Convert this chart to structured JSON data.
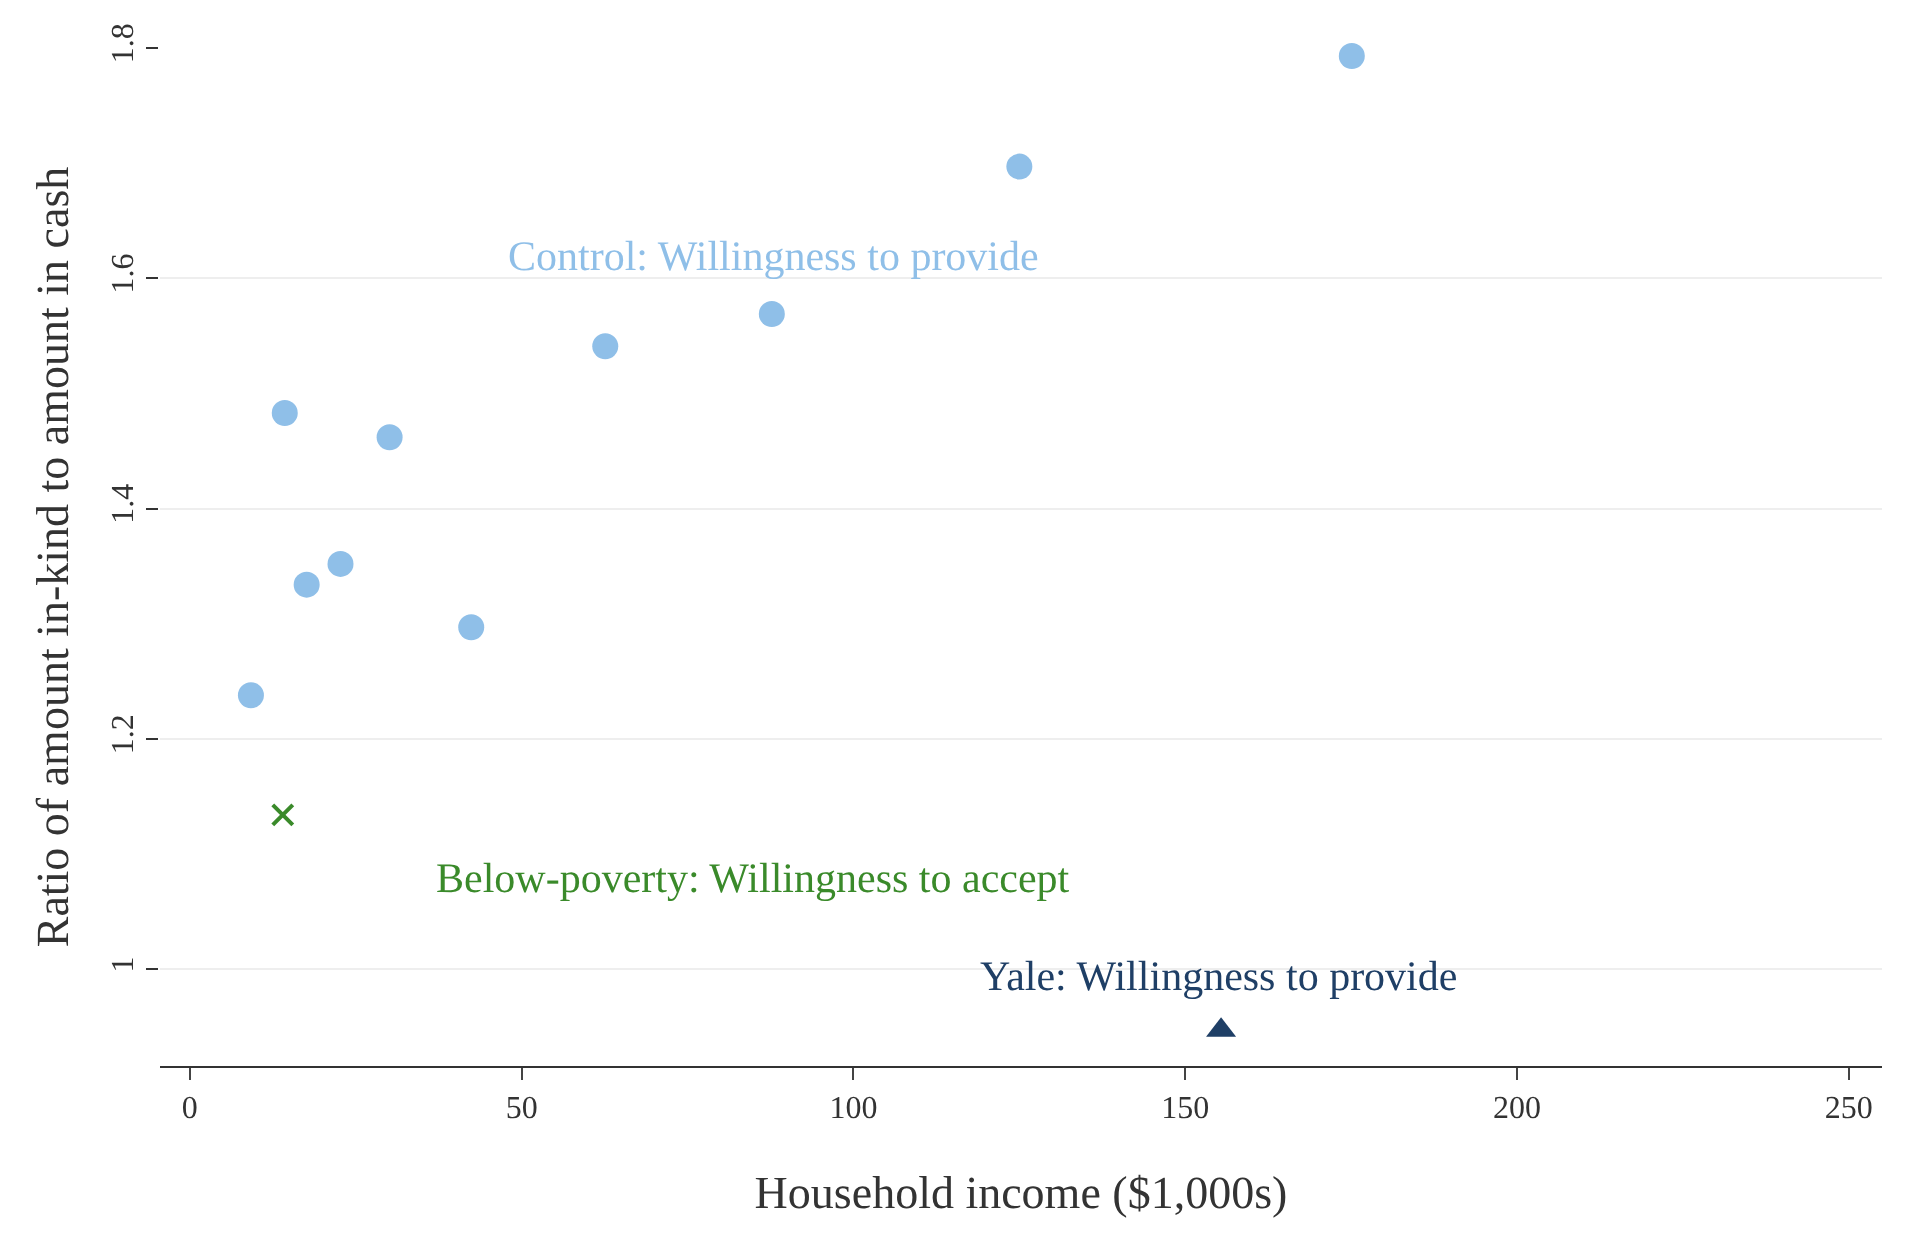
{
  "chart_data": {
    "type": "scatter",
    "xlabel": "Household income ($1,000s)",
    "ylabel": "Ratio of amount in-kind to amount in cash",
    "xlim": [
      -4.5,
      255
    ],
    "ylim": [
      0.916,
      1.8
    ],
    "xticks": [
      0,
      50,
      100,
      150,
      200,
      250
    ],
    "yticks": [
      {
        "value": 1,
        "label": "1"
      },
      1.2,
      1.4,
      1.6,
      1.8
    ],
    "grid": "y",
    "legend": false,
    "series": [
      {
        "name": "Control: Willingness to provide",
        "color": "#8fbfe8",
        "marker": "circle",
        "x": [
          9.2,
          14.3,
          17.6,
          22.7,
          30.1,
          42.4,
          62.6,
          87.7,
          125,
          175.1
        ],
        "values": [
          1.238,
          1.483,
          1.334,
          1.352,
          1.462,
          1.297,
          1.541,
          1.569,
          1.697,
          1.793
        ]
      },
      {
        "name": "Below-poverty: Willingness to accept",
        "color": "#3a8a2a",
        "marker": "cross",
        "x": [
          14.0
        ],
        "values": [
          1.134
        ]
      },
      {
        "name": "Yale: Willingness to provide",
        "color": "#1f3f66",
        "marker": "triangle",
        "x": [
          155.4
        ],
        "values": [
          0.947
        ]
      }
    ]
  }
}
